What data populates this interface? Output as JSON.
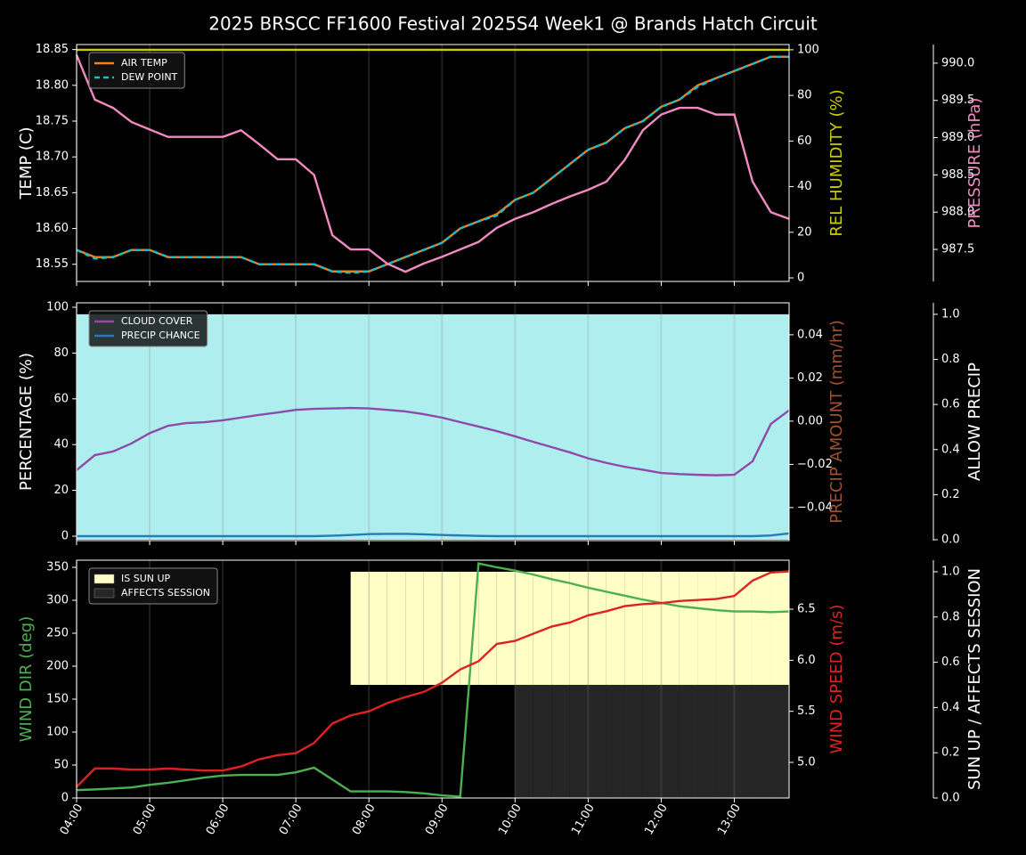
{
  "title": "2025 BRSCC FF1600 Festival 2025S4 Week1 @ Brands Hatch Circuit",
  "chart_data": [
    {
      "type": "line",
      "legend": "upper left",
      "grid": true,
      "x": [
        4,
        4.25,
        4.5,
        4.75,
        5,
        5.25,
        5.5,
        5.75,
        6,
        6.25,
        6.5,
        6.75,
        7,
        7.25,
        7.5,
        7.75,
        8,
        8.25,
        8.5,
        8.75,
        9,
        9.25,
        9.5,
        9.75,
        10,
        10.25,
        10.5,
        10.75,
        11,
        11.25,
        11.5,
        11.75,
        12,
        12.25,
        12.5,
        12.75,
        13,
        13.25,
        13.5,
        13.75
      ],
      "xlim": [
        4,
        13.75
      ],
      "ylabel": "TEMP (C)",
      "ylabel_color": "#ffffff",
      "ylim": [
        18.526,
        18.857
      ],
      "yticks": [
        18.55,
        {
          "value": 18.6,
          "label": "18.60"
        },
        18.65,
        {
          "value": 18.7,
          "label": "18.70"
        },
        18.75,
        {
          "value": 18.8,
          "label": "18.80"
        },
        18.85
      ],
      "y2label": "REL HUMIDITY (%)",
      "y2label_color": "#cccc00",
      "y2lim": [
        -1.56,
        102.3
      ],
      "y2ticks": [
        0,
        20,
        40,
        60,
        80,
        100
      ],
      "y3label": "PRESSURE (hPa)",
      "y3label_color": "#f08ac0",
      "y3lim": [
        987.07,
        990.25
      ],
      "y3ticks": [
        987.5,
        {
          "value": 988,
          "label": "988.0"
        },
        988.5,
        {
          "value": 989,
          "label": "989.0"
        },
        989.5,
        {
          "value": 990,
          "label": "990.0"
        }
      ],
      "series": [
        {
          "name": "AIR TEMP",
          "color": "#ff7f0e",
          "style": "line",
          "axis": "y",
          "values": [
            18.57,
            18.56,
            18.56,
            18.57,
            18.57,
            18.56,
            18.56,
            18.56,
            18.56,
            18.56,
            18.55,
            18.55,
            18.55,
            18.55,
            18.54,
            18.54,
            18.54,
            18.55,
            18.56,
            18.57,
            18.58,
            18.6,
            18.61,
            18.62,
            18.64,
            18.65,
            18.67,
            18.69,
            18.71,
            18.72,
            18.74,
            18.75,
            18.77,
            18.78,
            18.8,
            18.81,
            18.82,
            18.83,
            18.84,
            18.84
          ]
        },
        {
          "name": "DEW POINT",
          "color": "#17becf",
          "style": "dashed",
          "axis": "y",
          "values": [
            18.57,
            18.558,
            18.56,
            18.57,
            18.57,
            18.56,
            18.56,
            18.56,
            18.56,
            18.56,
            18.55,
            18.55,
            18.55,
            18.55,
            18.54,
            18.538,
            18.54,
            18.55,
            18.56,
            18.57,
            18.58,
            18.6,
            18.61,
            18.618,
            18.64,
            18.65,
            18.67,
            18.69,
            18.71,
            18.72,
            18.74,
            18.75,
            18.77,
            18.78,
            18.798,
            18.81,
            18.82,
            18.83,
            18.84,
            18.84
          ]
        },
        {
          "color": "#cccc00",
          "style": "line",
          "axis": "y2",
          "values": [
            100,
            100,
            100,
            100,
            100,
            100,
            100,
            100,
            100,
            100,
            100,
            100,
            100,
            100,
            100,
            100,
            100,
            100,
            100,
            100,
            100,
            100,
            100,
            100,
            100,
            100,
            100,
            100,
            100,
            100,
            100,
            100,
            100,
            100,
            100,
            100,
            100,
            100,
            100,
            100
          ]
        },
        {
          "color": "#f08ac0",
          "style": "line",
          "axis": "y3",
          "values": [
            990.11,
            989.51,
            989.4,
            989.21,
            989.11,
            989.01,
            989.01,
            989.01,
            989.01,
            989.1,
            988.91,
            988.71,
            988.71,
            988.5,
            987.69,
            987.5,
            987.5,
            987.31,
            987.2,
            987.31,
            987.4,
            987.5,
            987.6,
            987.79,
            987.91,
            988,
            988.11,
            988.21,
            988.3,
            988.41,
            988.7,
            989.1,
            989.31,
            989.4,
            989.4,
            989.31,
            989.31,
            988.41,
            988,
            987.91
          ]
        }
      ]
    },
    {
      "type": "line",
      "legend": "upper left",
      "grid": true,
      "x": [
        4,
        4.25,
        4.5,
        4.75,
        5,
        5.25,
        5.5,
        5.75,
        6,
        6.25,
        6.5,
        6.75,
        7,
        7.25,
        7.5,
        7.75,
        8,
        8.25,
        8.5,
        8.75,
        9,
        9.25,
        9.5,
        9.75,
        10,
        10.25,
        10.5,
        10.75,
        11,
        11.25,
        11.5,
        11.75,
        12,
        12.25,
        12.5,
        12.75,
        13,
        13.25,
        13.5,
        13.75
      ],
      "xlim": [
        4,
        13.75
      ],
      "ylabel": "PERCENTAGE (%)",
      "ylabel_color": "#ffffff",
      "ylim": [
        -1.95,
        101.95
      ],
      "yticks": [
        0,
        20,
        40,
        60,
        80,
        100
      ],
      "y2label": "PRECIP AMOUNT (mm/hr)",
      "y2label_color": "#a0522d",
      "y2lim": [
        -0.0553,
        0.0548
      ],
      "y2ticks": [
        {
          "value": -0.04,
          "label": "−0.04"
        },
        {
          "value": -0.02,
          "label": "−0.02"
        },
        {
          "value": 0,
          "label": "0.00"
        },
        0.02,
        0.04
      ],
      "y3label": "ALLOW PRECIP",
      "y3label_color": "#ffffff",
      "y3lim": [
        -0.004,
        1.051
      ],
      "y3ticks": [
        {
          "value": 0,
          "label": "0.0"
        },
        0.2,
        0.4,
        0.6,
        0.8,
        {
          "value": 1,
          "label": "1.0"
        }
      ],
      "series": [
        {
          "color": "#afeeee",
          "style": "area",
          "axis": "y3",
          "values": [
            1,
            1,
            1,
            1,
            1,
            1,
            1,
            1,
            1,
            1,
            1,
            1,
            1,
            1,
            1,
            1,
            1,
            1,
            1,
            1,
            1,
            1,
            1,
            1,
            1,
            1,
            1,
            1,
            1,
            1,
            1,
            1,
            1,
            1,
            1,
            1,
            1,
            1,
            1,
            1
          ]
        },
        {
          "name": "CLOUD COVER",
          "color": "#8e4aa8",
          "style": "line",
          "axis": "y",
          "values": [
            28.8,
            35.4,
            37,
            40.5,
            45,
            48.2,
            49.4,
            49.8,
            50.6,
            51.8,
            53,
            54,
            55.2,
            55.6,
            55.8,
            56,
            55.8,
            55.2,
            54.5,
            53.3,
            51.8,
            49.8,
            47.9,
            45.9,
            43.6,
            41.2,
            38.9,
            36.6,
            34,
            32,
            30.3,
            29,
            27.6,
            27.1,
            26.8,
            26.6,
            26.8,
            32.7,
            49,
            55
          ]
        },
        {
          "name": "PRECIP CHANCE",
          "color": "#2a7ab8",
          "style": "line",
          "axis": "y",
          "values": [
            0,
            0,
            0,
            0,
            0,
            0,
            0,
            0,
            0,
            0,
            0,
            0,
            0,
            0,
            0.2,
            0.5,
            0.9,
            1,
            1,
            0.8,
            0.5,
            0.3,
            0.1,
            0,
            0,
            0,
            0,
            0,
            0,
            0,
            0,
            0,
            0,
            0,
            0,
            0,
            0,
            0,
            0.3,
            1.2
          ]
        }
      ]
    },
    {
      "type": "line",
      "legend": "upper left",
      "grid": true,
      "x": [
        4,
        4.25,
        4.5,
        4.75,
        5,
        5.25,
        5.5,
        5.75,
        6,
        6.25,
        6.5,
        6.75,
        7,
        7.25,
        7.5,
        7.75,
        8,
        8.25,
        8.5,
        8.75,
        9,
        9.25,
        9.5,
        9.75,
        10,
        10.25,
        10.5,
        10.75,
        11,
        11.25,
        11.5,
        11.75,
        12,
        12.25,
        12.5,
        12.75,
        13,
        13.25,
        13.5,
        13.75
      ],
      "xlim": [
        4,
        13.75
      ],
      "xticks": [
        {
          "value": 4,
          "label": "04:00"
        },
        {
          "value": 5,
          "label": "05:00"
        },
        {
          "value": 6,
          "label": "06:00"
        },
        {
          "value": 7,
          "label": "07:00"
        },
        {
          "value": 8,
          "label": "08:00"
        },
        {
          "value": 9,
          "label": "09:00"
        },
        {
          "value": 10,
          "label": "10:00"
        },
        {
          "value": 11,
          "label": "11:00"
        },
        {
          "value": 12,
          "label": "12:00"
        },
        {
          "value": 13,
          "label": "13:00"
        }
      ],
      "ylabel": "WIND DIR (deg)",
      "ylabel_color": "#4caf50",
      "ylim": [
        0,
        360.8
      ],
      "yticks": [
        0,
        50,
        100,
        150,
        200,
        250,
        300,
        350
      ],
      "y2label": "WIND SPEED (m/s)",
      "y2label_color": "#dd2222",
      "y2lim": [
        4.651,
        6.98
      ],
      "y2ticks": [
        {
          "value": 5,
          "label": "5.0"
        },
        5.5,
        {
          "value": 6,
          "label": "6.0"
        },
        6.5
      ],
      "y3label": "SUN UP / AFFECTS SESSION",
      "y3label_color": "#ffffff",
      "y3lim": [
        0,
        1.051
      ],
      "y3ticks": [
        {
          "value": 0,
          "label": "0.0"
        },
        0.2,
        0.4,
        0.6,
        0.8,
        {
          "value": 1,
          "label": "1.0"
        }
      ],
      "series": [
        {
          "name": "IS SUN UP",
          "color": "#ffffc5",
          "style": "band-top",
          "axis": "y3",
          "values": [
            0,
            0,
            0,
            0,
            0,
            0,
            0,
            0,
            0,
            0,
            0,
            0,
            0,
            0,
            0,
            0.5,
            0.5,
            0.5,
            0.5,
            0.5,
            0.5,
            0.5,
            0.5,
            0.5,
            0.5,
            0.5,
            0.5,
            0.5,
            0.5,
            0.5,
            0.5,
            0.5,
            0.5,
            0.5,
            0.5,
            0.5,
            0.5,
            0.5,
            0.5,
            0.5
          ]
        },
        {
          "name": "AFFECTS SESSION",
          "color": "#262626",
          "style": "band",
          "axis": "y3",
          "values": [
            0,
            0,
            0,
            0,
            0,
            0,
            0,
            0,
            0,
            0,
            0,
            0,
            0,
            0,
            0,
            0,
            0,
            0,
            0,
            0,
            0,
            0,
            0,
            0,
            0.5,
            0.5,
            0.5,
            0.5,
            0.5,
            0.5,
            0.5,
            0.5,
            0.5,
            0.5,
            0.5,
            0.5,
            0.5,
            0.5,
            0.5,
            0.5
          ]
        },
        {
          "color": "#4caf50",
          "style": "line",
          "axis": "y",
          "values": [
            12,
            13,
            14.5,
            16,
            20,
            23,
            27,
            31,
            34,
            35,
            35,
            35,
            39,
            46,
            28,
            10,
            10,
            10,
            9,
            7,
            4,
            2,
            356,
            350,
            345,
            339,
            332,
            326,
            319,
            313,
            307,
            301,
            296,
            291,
            288,
            285,
            283,
            283,
            282,
            283
          ]
        },
        {
          "color": "#dd2222",
          "style": "line",
          "axis": "y2",
          "values": [
            4.76,
            4.94,
            4.94,
            4.93,
            4.93,
            4.94,
            4.93,
            4.92,
            4.92,
            4.96,
            5.03,
            5.07,
            5.09,
            5.19,
            5.38,
            5.46,
            5.5,
            5.58,
            5.64,
            5.69,
            5.78,
            5.91,
            5.99,
            6.16,
            6.19,
            6.26,
            6.33,
            6.37,
            6.44,
            6.48,
            6.53,
            6.55,
            6.56,
            6.58,
            6.59,
            6.6,
            6.63,
            6.78,
            6.86,
            6.87
          ]
        }
      ]
    }
  ]
}
